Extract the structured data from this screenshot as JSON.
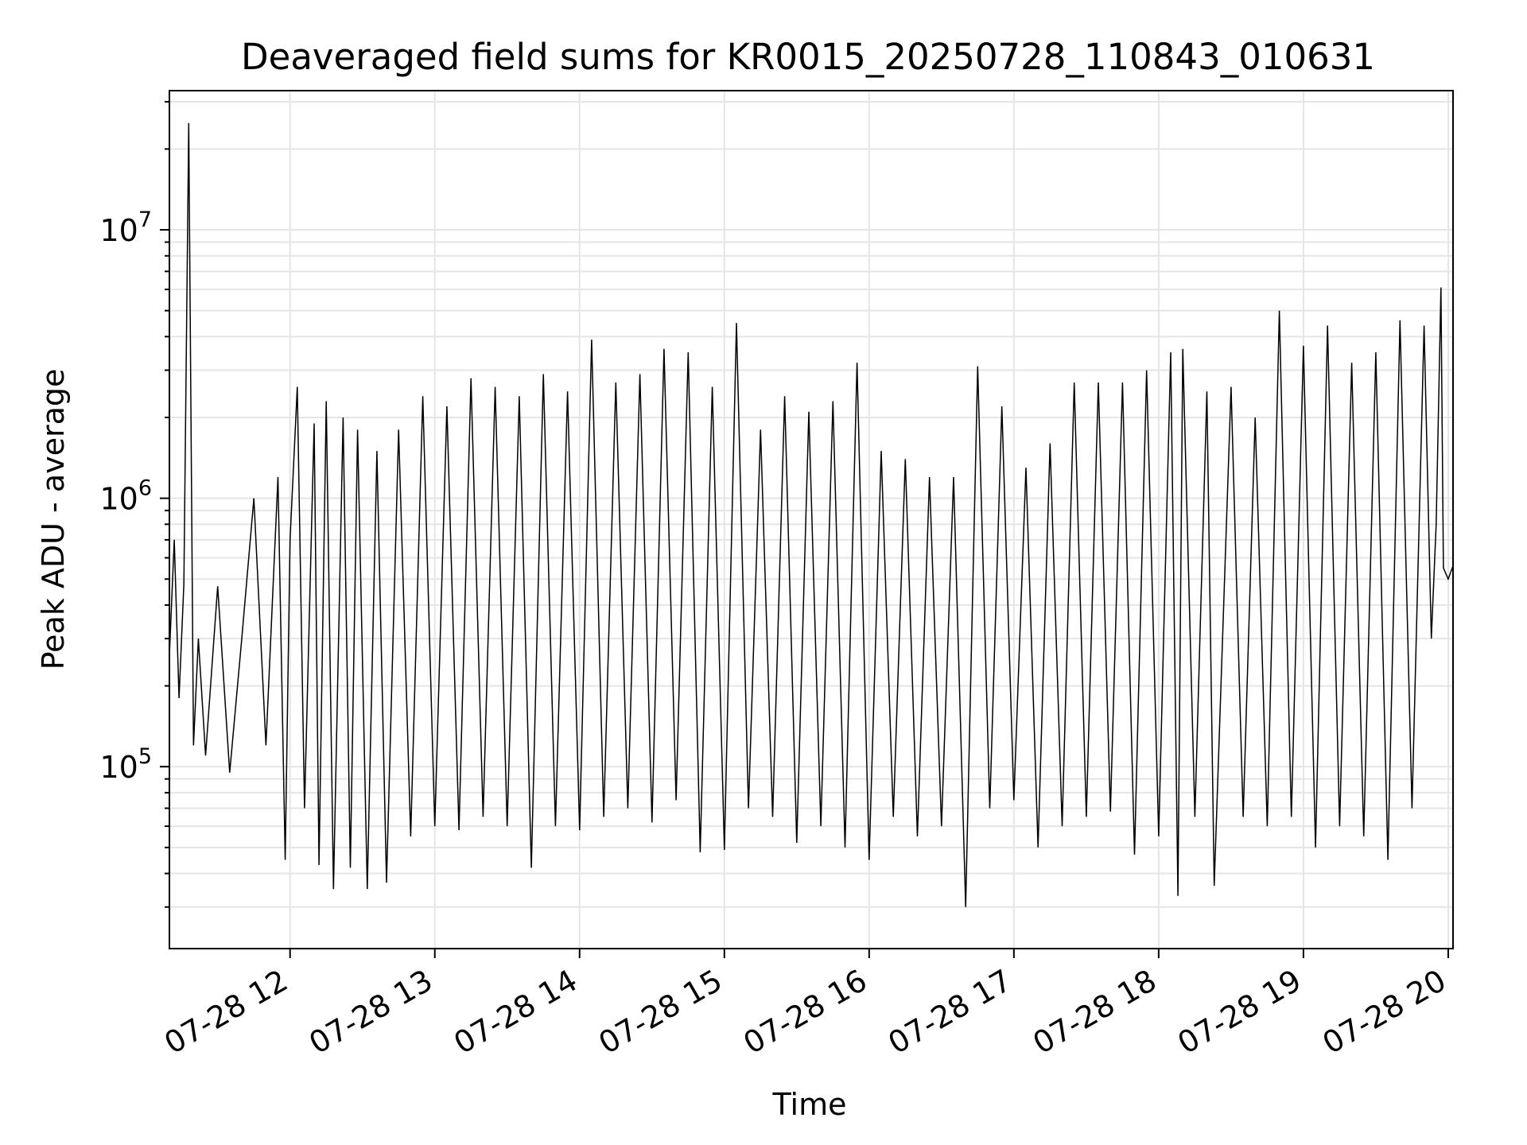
{
  "chart_data": {
    "type": "line",
    "title": "Deaveraged field sums for KR0015_20250728_110843_010631",
    "xlabel": "Time",
    "ylabel": "Peak ADU - average",
    "yscale": "log",
    "grid": true,
    "xlim": [
      "07-28 11:10",
      "07-28 20:02"
    ],
    "ylim": [
      21000,
      33000000
    ],
    "x_ticks": [
      "07-28 12",
      "07-28 13",
      "07-28 14",
      "07-28 15",
      "07-28 16",
      "07-28 17",
      "07-28 18",
      "07-28 19",
      "07-28 20"
    ],
    "y_ticks": [
      {
        "base": "10",
        "exp": "5",
        "value": 100000
      },
      {
        "base": "10",
        "exp": "6",
        "value": 1000000
      },
      {
        "base": "10",
        "exp": "7",
        "value": 10000000
      }
    ],
    "series_color": "#000000",
    "series": [
      {
        "points": [
          [
            "07-28 11:10",
            260000
          ],
          [
            "07-28 11:12",
            700000
          ],
          [
            "07-28 11:14",
            180000
          ],
          [
            "07-28 11:16",
            480000
          ],
          [
            "07-28 11:18",
            25000000
          ],
          [
            "07-28 11:20",
            120000
          ],
          [
            "07-28 11:22",
            300000
          ],
          [
            "07-28 11:25",
            110000
          ],
          [
            "07-28 11:30",
            470000
          ],
          [
            "07-28 11:35",
            95000
          ],
          [
            "07-28 11:40",
            300000
          ],
          [
            "07-28 11:45",
            1000000
          ],
          [
            "07-28 11:50",
            120000
          ],
          [
            "07-28 11:55",
            1200000
          ],
          [
            "07-28 11:58",
            45000
          ],
          [
            "07-28 12:00",
            700000
          ],
          [
            "07-28 12:03",
            2600000
          ],
          [
            "07-28 12:06",
            70000
          ],
          [
            "07-28 12:10",
            1900000
          ],
          [
            "07-28 12:12",
            43000
          ],
          [
            "07-28 12:15",
            2300000
          ],
          [
            "07-28 12:18",
            35000
          ],
          [
            "07-28 12:22",
            2000000
          ],
          [
            "07-28 12:25",
            42000
          ],
          [
            "07-28 12:28",
            1800000
          ],
          [
            "07-28 12:32",
            35000
          ],
          [
            "07-28 12:36",
            1500000
          ],
          [
            "07-28 12:40",
            37000
          ],
          [
            "07-28 12:45",
            1800000
          ],
          [
            "07-28 12:50",
            55000
          ],
          [
            "07-28 12:55",
            2400000
          ],
          [
            "07-28 13:00",
            60000
          ],
          [
            "07-28 13:05",
            2200000
          ],
          [
            "07-28 13:10",
            58000
          ],
          [
            "07-28 13:15",
            2800000
          ],
          [
            "07-28 13:20",
            65000
          ],
          [
            "07-28 13:25",
            2600000
          ],
          [
            "07-28 13:30",
            60000
          ],
          [
            "07-28 13:35",
            2400000
          ],
          [
            "07-28 13:40",
            42000
          ],
          [
            "07-28 13:45",
            2900000
          ],
          [
            "07-28 13:50",
            60000
          ],
          [
            "07-28 13:55",
            2500000
          ],
          [
            "07-28 14:00",
            58000
          ],
          [
            "07-28 14:05",
            3900000
          ],
          [
            "07-28 14:10",
            65000
          ],
          [
            "07-28 14:15",
            2700000
          ],
          [
            "07-28 14:20",
            70000
          ],
          [
            "07-28 14:25",
            2900000
          ],
          [
            "07-28 14:30",
            62000
          ],
          [
            "07-28 14:35",
            3600000
          ],
          [
            "07-28 14:40",
            75000
          ],
          [
            "07-28 14:45",
            3500000
          ],
          [
            "07-28 14:50",
            48000
          ],
          [
            "07-28 14:55",
            2600000
          ],
          [
            "07-28 15:00",
            49000
          ],
          [
            "07-28 15:05",
            4500000
          ],
          [
            "07-28 15:10",
            70000
          ],
          [
            "07-28 15:15",
            1800000
          ],
          [
            "07-28 15:20",
            65000
          ],
          [
            "07-28 15:25",
            2400000
          ],
          [
            "07-28 15:30",
            52000
          ],
          [
            "07-28 15:35",
            2100000
          ],
          [
            "07-28 15:40",
            60000
          ],
          [
            "07-28 15:45",
            2300000
          ],
          [
            "07-28 15:50",
            50000
          ],
          [
            "07-28 15:55",
            3200000
          ],
          [
            "07-28 16:00",
            45000
          ],
          [
            "07-28 16:05",
            1500000
          ],
          [
            "07-28 16:10",
            65000
          ],
          [
            "07-28 16:15",
            1400000
          ],
          [
            "07-28 16:20",
            55000
          ],
          [
            "07-28 16:25",
            1200000
          ],
          [
            "07-28 16:30",
            60000
          ],
          [
            "07-28 16:35",
            1200000
          ],
          [
            "07-28 16:40",
            30000
          ],
          [
            "07-28 16:45",
            3100000
          ],
          [
            "07-28 16:50",
            70000
          ],
          [
            "07-28 16:55",
            2200000
          ],
          [
            "07-28 17:00",
            75000
          ],
          [
            "07-28 17:05",
            1300000
          ],
          [
            "07-28 17:10",
            50000
          ],
          [
            "07-28 17:15",
            1600000
          ],
          [
            "07-28 17:20",
            60000
          ],
          [
            "07-28 17:25",
            2700000
          ],
          [
            "07-28 17:30",
            65000
          ],
          [
            "07-28 17:35",
            2700000
          ],
          [
            "07-28 17:40",
            68000
          ],
          [
            "07-28 17:45",
            2700000
          ],
          [
            "07-28 17:50",
            47000
          ],
          [
            "07-28 17:55",
            3000000
          ],
          [
            "07-28 18:00",
            55000
          ],
          [
            "07-28 18:05",
            3500000
          ],
          [
            "07-28 18:08",
            33000
          ],
          [
            "07-28 18:10",
            3600000
          ],
          [
            "07-28 18:15",
            65000
          ],
          [
            "07-28 18:20",
            2500000
          ],
          [
            "07-28 18:23",
            36000
          ],
          [
            "07-28 18:30",
            2600000
          ],
          [
            "07-28 18:35",
            65000
          ],
          [
            "07-28 18:40",
            2000000
          ],
          [
            "07-28 18:45",
            60000
          ],
          [
            "07-28 18:50",
            5000000
          ],
          [
            "07-28 18:55",
            65000
          ],
          [
            "07-28 19:00",
            3700000
          ],
          [
            "07-28 19:05",
            50000
          ],
          [
            "07-28 19:10",
            4400000
          ],
          [
            "07-28 19:15",
            60000
          ],
          [
            "07-28 19:20",
            3200000
          ],
          [
            "07-28 19:25",
            55000
          ],
          [
            "07-28 19:30",
            3500000
          ],
          [
            "07-28 19:35",
            45000
          ],
          [
            "07-28 19:40",
            4600000
          ],
          [
            "07-28 19:45",
            70000
          ],
          [
            "07-28 19:50",
            4400000
          ],
          [
            "07-28 19:53",
            300000
          ],
          [
            "07-28 19:55",
            800000
          ],
          [
            "07-28 19:57",
            6100000
          ],
          [
            "07-28 19:58",
            550000
          ],
          [
            "07-28 20:00",
            500000
          ],
          [
            "07-28 20:02",
            560000
          ]
        ]
      }
    ]
  }
}
